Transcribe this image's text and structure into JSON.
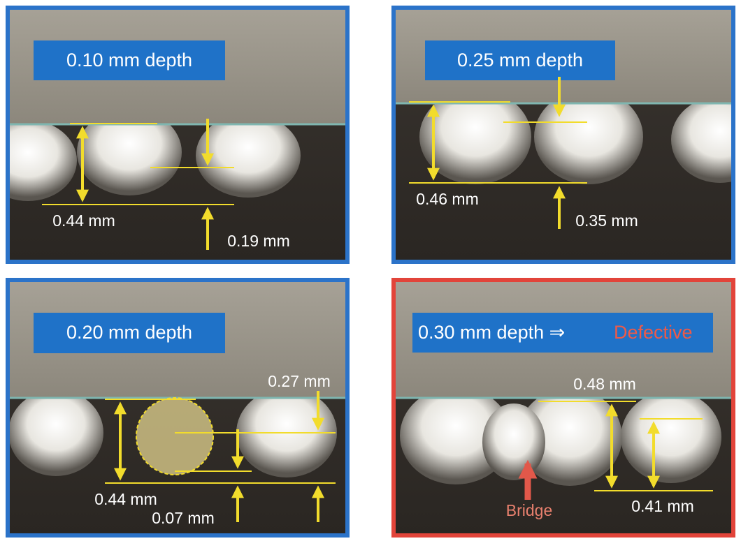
{
  "panels": [
    {
      "title": "0.10 mm depth",
      "labels": [
        "0.44 mm",
        "0.19 mm"
      ]
    },
    {
      "title": "0.25 mm depth",
      "labels": [
        "0.46 mm",
        "0.35 mm"
      ]
    },
    {
      "title": "0.20 mm depth",
      "labels": [
        "0.27 mm",
        "0.44 mm",
        "0.07 mm"
      ]
    },
    {
      "title": "0.30 mm depth ⇒",
      "status": "Defective",
      "bridge_label": "Bridge",
      "labels": [
        "0.48 mm",
        "0.41 mm"
      ]
    }
  ]
}
